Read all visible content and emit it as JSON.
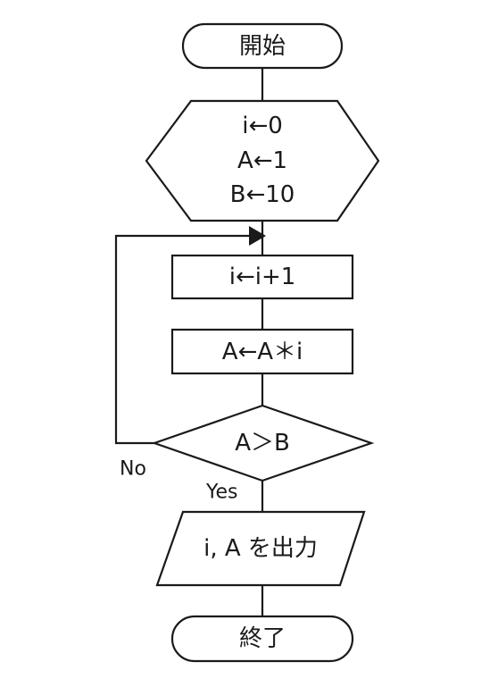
{
  "flowchart": {
    "start": {
      "text": "開始"
    },
    "init": {
      "lines": [
        "i←0",
        "A←1",
        "B←10"
      ]
    },
    "step1": {
      "text": "i←i+1"
    },
    "step2": {
      "text": "A←A＊i"
    },
    "decision": {
      "text": "A＞B",
      "no_label": "No",
      "yes_label": "Yes"
    },
    "output": {
      "text": "i, A を出力"
    },
    "end": {
      "text": "終了"
    }
  }
}
